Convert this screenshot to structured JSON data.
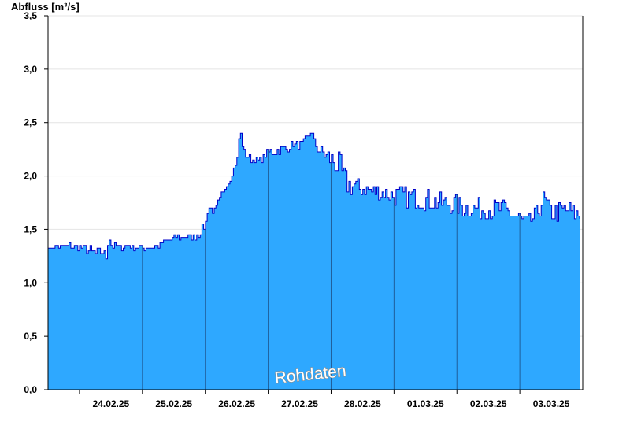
{
  "chart_data": {
    "type": "area",
    "title": "",
    "ylabel": "Abfluss [m³/s]",
    "xlabel": "",
    "ylim": [
      0,
      3.5
    ],
    "yticks": [
      0,
      0.5,
      1.0,
      1.5,
      2.0,
      2.5,
      3.0,
      3.5
    ],
    "ytick_labels": [
      "0,0",
      "0,5",
      "1,0",
      "1,5",
      "2,0",
      "2,5",
      "3,0",
      "3,5"
    ],
    "xlim_days": [
      23.5,
      3.5
    ],
    "x_tick_labels": [
      "24.02.25",
      "25.02.25",
      "26.02.25",
      "27.02.25",
      "28.02.25",
      "01.03.25",
      "02.03.25",
      "03.03.25"
    ],
    "day_boundaries": [
      "24.02.25 00:00",
      "25.02.25 00:00",
      "26.02.25 00:00",
      "27.02.25 00:00",
      "28.02.25 00:00",
      "01.03.25 00:00",
      "02.03.25 00:00",
      "03.03.25 00:00"
    ],
    "grid": true,
    "fill_color": "#2ea8ff",
    "line_color": "#0000c8",
    "series": [
      {
        "x": [
          "23.02.25 12:00",
          "23.02.25 18:00",
          "24.02.25 00:00",
          "24.02.25 03:00",
          "24.02.25 06:00",
          "24.02.25 09:00",
          "24.02.25 10:00",
          "24.02.25 11:00",
          "24.02.25 12:00",
          "24.02.25 15:00",
          "24.02.25 18:00",
          "24.02.25 21:00",
          "25.02.25 00:00",
          "25.02.25 06:00",
          "25.02.25 09:00",
          "25.02.25 12:00",
          "25.02.25 15:00",
          "25.02.25 18:00",
          "25.02.25 21:00",
          "26.02.25 00:00",
          "26.02.25 01:00",
          "26.02.25 03:00",
          "26.02.25 06:00",
          "26.02.25 09:00",
          "26.02.25 12:00",
          "26.02.25 13:00",
          "26.02.25 15:00",
          "26.02.25 18:00",
          "26.02.25 21:00",
          "27.02.25 00:00",
          "27.02.25 06:00",
          "27.02.25 09:00",
          "27.02.25 12:00",
          "27.02.25 15:00",
          "27.02.25 16:00",
          "27.02.25 18:00",
          "27.02.25 21:00",
          "28.02.25 00:00",
          "28.02.25 03:00",
          "28.02.25 06:00",
          "28.02.25 09:00",
          "28.02.25 12:00",
          "28.02.25 15:00",
          "28.02.25 18:00",
          "28.02.25 21:00",
          "01.03.25 00:00",
          "01.03.25 06:00",
          "01.03.25 12:00",
          "01.03.25 18:00",
          "02.03.25 00:00",
          "02.03.25 06:00",
          "02.03.25 12:00",
          "02.03.25 18:00",
          "03.03.25 00:00",
          "03.03.25 03:00",
          "03.03.25 06:00",
          "03.03.25 09:00",
          "03.03.25 12:00",
          "03.03.25 18:00",
          "03.03.25 23:00"
        ],
        "values": [
          1.33,
          1.35,
          1.33,
          1.31,
          1.28,
          1.3,
          1.22,
          1.45,
          1.35,
          1.33,
          1.35,
          1.33,
          1.33,
          1.34,
          1.4,
          1.42,
          1.43,
          1.42,
          1.45,
          1.55,
          1.72,
          1.65,
          1.82,
          1.95,
          2.15,
          2.42,
          2.2,
          2.15,
          2.15,
          2.22,
          2.25,
          2.3,
          2.28,
          2.36,
          2.42,
          2.28,
          2.2,
          2.15,
          2.08,
          1.92,
          1.9,
          1.88,
          1.86,
          1.85,
          1.84,
          1.82,
          1.8,
          1.78,
          1.75,
          1.72,
          1.7,
          1.7,
          1.68,
          1.6,
          1.55,
          1.62,
          1.8,
          1.65,
          1.68,
          1.62
        ],
        "noise": [
          0,
          0.03,
          0.04,
          0.05,
          0.04,
          0.04,
          0.03,
          0.03,
          0.03,
          0.03,
          0.03,
          0.03,
          0.03,
          0.02,
          0.03,
          0.04,
          0.04,
          0.04,
          0.04,
          0.03,
          0.02,
          0.03,
          0.02,
          0.02,
          0.03,
          0.04,
          0.03,
          0.03,
          0.04,
          0.04,
          0.04,
          0.04,
          0.04,
          0.04,
          0.04,
          0.05,
          0.07,
          0.11,
          0.14,
          0.12,
          0.1,
          0.09,
          0.09,
          0.09,
          0.09,
          0.1,
          0.1,
          0.1,
          0.1,
          0.1,
          0.11,
          0.11,
          0.11,
          0.1,
          0.09,
          0.09,
          0.08,
          0.09,
          0.1,
          0.1
        ]
      }
    ],
    "annotation": "Rohdaten"
  }
}
